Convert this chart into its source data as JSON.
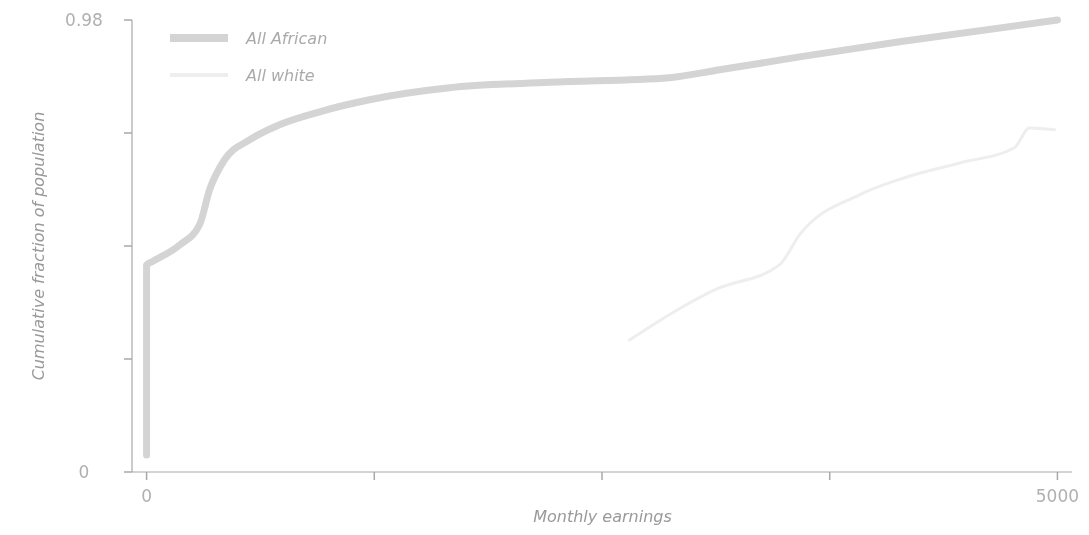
{
  "chart_data": {
    "type": "line",
    "xlabel": "Monthly earnings",
    "ylabel": "Cumulative fraction of population",
    "xlim": [
      -80,
      5080
    ],
    "xticks": [
      0,
      {
        "value": 1250,
        "label": null
      },
      {
        "value": 2500,
        "label": null
      },
      {
        "value": 3750,
        "label": null
      },
      5000
    ],
    "ylim": [
      0,
      0.98
    ],
    "yticks": [
      0,
      {
        "value": 0.245,
        "label": null
      },
      {
        "value": 0.49,
        "label": null
      },
      {
        "value": 0.735,
        "label": null
      },
      0.98
    ],
    "legend": "top left",
    "grid": false,
    "series": [
      {
        "name": "All African",
        "color": "#d4d4d4",
        "x": [
          0,
          0,
          30,
          181,
          291,
          346,
          428,
          565,
          730,
          950,
          1224,
          1663,
          2212,
          2870,
          3145,
          3584,
          4133,
          5000
        ],
        "values": [
          0.037,
          0.449,
          0.456,
          0.492,
          0.536,
          0.612,
          0.677,
          0.72,
          0.753,
          0.781,
          0.807,
          0.833,
          0.845,
          0.855,
          0.872,
          0.9,
          0.933,
          0.98
        ]
      },
      {
        "name": "All white",
        "color": "#eeeeee",
        "x": [
          2651,
          3118,
          3474,
          3584,
          3913,
          4160,
          4462,
          4764,
          4847,
          4984
        ],
        "values": [
          0.286,
          0.395,
          0.449,
          0.514,
          0.601,
          0.638,
          0.67,
          0.703,
          0.746,
          0.742
        ]
      }
    ]
  }
}
